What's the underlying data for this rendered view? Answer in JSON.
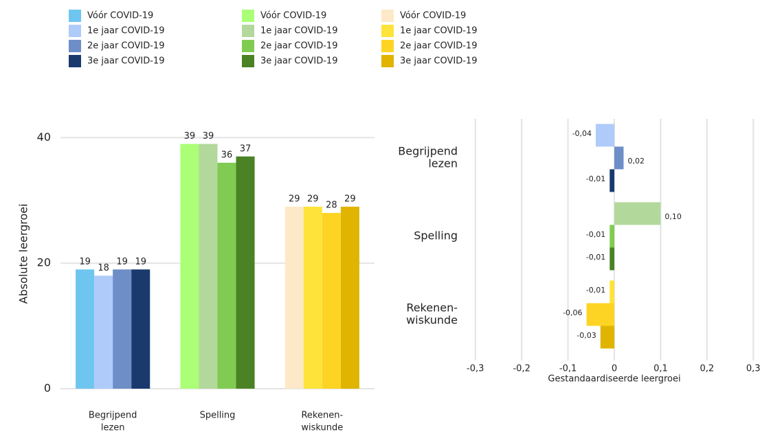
{
  "chart_data": [
    {
      "type": "bar",
      "y_label": "Absolute leergroei",
      "categories": [
        [
          "Begrijpend",
          "lezen"
        ],
        [
          "Spelling"
        ],
        [
          "Rekenen-",
          "wiskunde"
        ]
      ],
      "series": [
        {
          "name": "Vóór COVID-19",
          "colors": [
            "#6ec6f0",
            "#aaff77",
            "#fde9c8"
          ],
          "values": [
            19,
            39,
            29
          ]
        },
        {
          "name": "1e jaar COVID-19",
          "colors": [
            "#aecbfa",
            "#b3d89c",
            "#fde33a"
          ],
          "values": [
            18,
            39,
            29
          ]
        },
        {
          "name": "2e jaar COVID-19",
          "colors": [
            "#6d8ec7",
            "#80cc52",
            "#fdd424"
          ],
          "values": [
            19,
            36,
            28
          ]
        },
        {
          "name": "3e jaar COVID-19",
          "colors": [
            "#1a3a6e",
            "#4a8225",
            "#e0b400"
          ],
          "values": [
            19,
            37,
            29
          ]
        }
      ],
      "ylim": [
        0,
        43
      ],
      "yticks": [
        0,
        20,
        40
      ],
      "grid": true
    },
    {
      "type": "hbar",
      "x_label": "Gestandaardiseerde leergroei",
      "categories": [
        [
          "Begrijpend",
          "lezen"
        ],
        [
          "Spelling"
        ],
        [
          "Rekenen-",
          "wiskunde"
        ]
      ],
      "series": [
        {
          "colors": [
            "#aecbfa",
            "#b3d89c",
            "#fde33a"
          ],
          "values": [
            -0.04,
            0.1,
            -0.01
          ],
          "value_labels": [
            "-0,04",
            "0,10",
            "-0,01"
          ]
        },
        {
          "colors": [
            "#6d8ec7",
            "#80cc52",
            "#fdd424"
          ],
          "values": [
            0.02,
            -0.01,
            -0.06
          ],
          "value_labels": [
            "0,02",
            "-0,01",
            "-0,06"
          ]
        },
        {
          "colors": [
            "#1a3a6e",
            "#4a8225",
            "#e0b400"
          ],
          "values": [
            -0.01,
            -0.01,
            -0.03
          ],
          "value_labels": [
            "-0,01",
            "-0,01",
            "-0,03"
          ]
        }
      ],
      "xlim": [
        -0.31,
        0.31
      ],
      "xticks": [
        {
          "value": -0.3,
          "label": "-0,3"
        },
        {
          "value": -0.2,
          "label": "-0,2"
        },
        {
          "value": -0.1,
          "label": "-0,1"
        },
        0,
        {
          "value": 0.1,
          "label": "0,1"
        },
        {
          "value": 0.2,
          "label": "0,2"
        },
        {
          "value": 0.3,
          "label": "0,3"
        }
      ],
      "grid": true
    }
  ]
}
